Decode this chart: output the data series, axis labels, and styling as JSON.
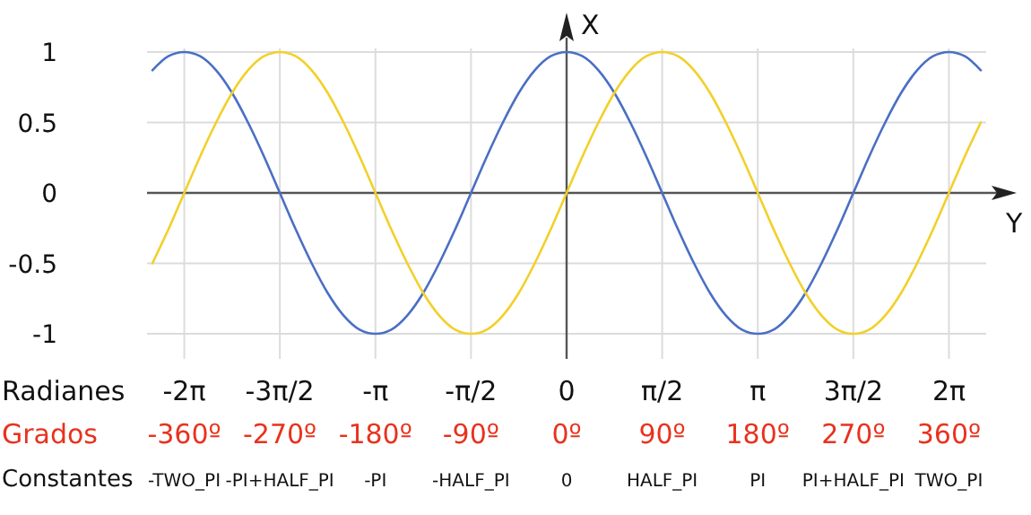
{
  "chart_data": {
    "type": "line",
    "xlabel": "Y",
    "ylabel": "X",
    "x": [
      -390,
      -375,
      -360,
      -345,
      -330,
      -315,
      -300,
      -285,
      -270,
      -255,
      -240,
      -225,
      -210,
      -195,
      -180,
      -165,
      -150,
      -135,
      -120,
      -105,
      -90,
      -75,
      -60,
      -45,
      -30,
      -15,
      0,
      15,
      30,
      45,
      60,
      75,
      90,
      105,
      120,
      135,
      150,
      165,
      180,
      195,
      210,
      225,
      240,
      255,
      270,
      285,
      300,
      315,
      330,
      345,
      360,
      375,
      390
    ],
    "series": [
      {
        "color": "#4a6fc4",
        "values": [
          0.87,
          0.97,
          1,
          0.97,
          0.87,
          0.71,
          0.5,
          0.26,
          0,
          -0.26,
          -0.5,
          -0.71,
          -0.87,
          -0.97,
          -1,
          -0.97,
          -0.87,
          -0.71,
          -0.5,
          -0.26,
          0,
          0.26,
          0.5,
          0.71,
          0.87,
          0.97,
          1,
          0.97,
          0.87,
          0.71,
          0.5,
          0.26,
          0,
          -0.26,
          -0.5,
          -0.71,
          -0.87,
          -0.97,
          -1,
          -0.97,
          -0.87,
          -0.71,
          -0.5,
          -0.26,
          0,
          0.26,
          0.5,
          0.71,
          0.87,
          0.97,
          1,
          0.97,
          0.87
        ]
      },
      {
        "color": "#f2d02a",
        "values": [
          -0.5,
          -0.26,
          0,
          0.26,
          0.5,
          0.71,
          0.87,
          0.97,
          1,
          0.97,
          0.87,
          0.71,
          0.5,
          0.26,
          0,
          -0.26,
          -0.5,
          -0.71,
          -0.87,
          -0.97,
          -1,
          -0.97,
          -0.87,
          -0.71,
          -0.5,
          -0.26,
          0,
          0.26,
          0.5,
          0.71,
          0.87,
          0.97,
          1,
          0.97,
          0.87,
          0.71,
          0.5,
          0.26,
          0,
          -0.26,
          -0.5,
          -0.71,
          -0.87,
          -0.97,
          -1,
          -0.97,
          -0.87,
          -0.71,
          -0.5,
          -0.26,
          0,
          0.26,
          0.5
        ]
      }
    ],
    "xlim": [
      -390,
      390
    ],
    "ylim": [
      -1,
      1
    ],
    "xticks": [
      {
        "value": -360,
        "label": "-360º"
      },
      {
        "value": -270,
        "label": "-270º"
      },
      {
        "value": -180,
        "label": "-180º"
      },
      {
        "value": -90,
        "label": "-90º"
      },
      {
        "value": 0,
        "label": "0º"
      },
      {
        "value": 90,
        "label": "90º"
      },
      {
        "value": 180,
        "label": "180º"
      },
      {
        "value": 270,
        "label": "270º"
      },
      {
        "value": 360,
        "label": "360º"
      }
    ],
    "yticks": [
      1,
      0.5,
      0,
      -0.5,
      -1
    ],
    "grid": true,
    "annotations": [
      "Radianes",
      "Grados",
      "Constantes",
      "-2π",
      "-3π/2",
      "-π",
      "-π/2",
      "0",
      "π/2",
      "π",
      "3π/2",
      "2π",
      "-TWO_PI",
      "-PI+HALF_PI",
      "-PI",
      "-HALF_PI",
      "0",
      "HALF_PI",
      "PI",
      "PI+HALF_PI",
      "TWO_PI"
    ]
  }
}
